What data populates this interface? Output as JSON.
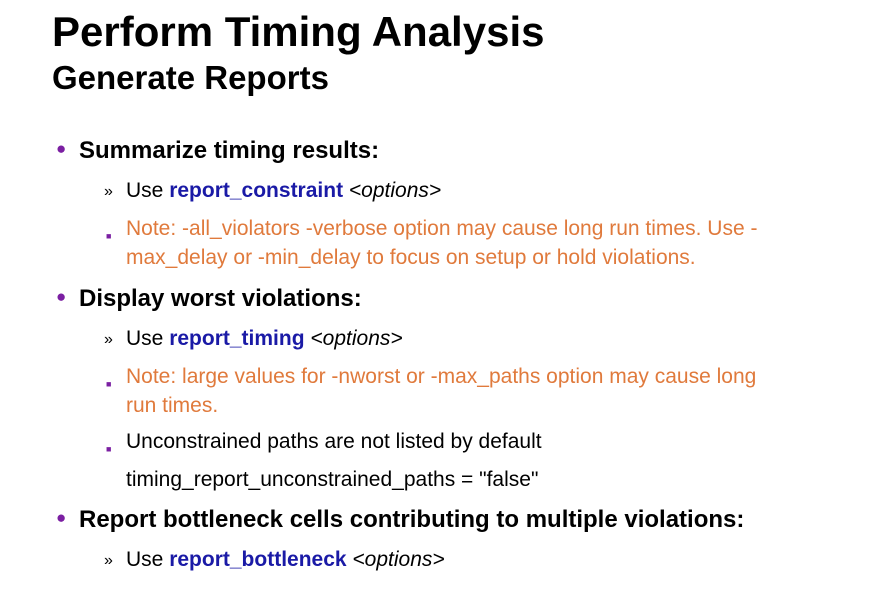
{
  "title": "Perform Timing Analysis",
  "subtitle": "Generate Reports",
  "bullets": [
    {
      "label": "Summarize timing results:",
      "use_prefix": "Use",
      "command": "report_constraint",
      "options": "<options>",
      "note_line1": "Note: -all_violators -verbose option may cause long run times. Use -",
      "note_line2": "max_delay or -min_delay to focus on setup or hold violations."
    },
    {
      "label": "Display worst violations:",
      "use_prefix": "Use",
      "command": "report_timing",
      "options": "<options>",
      "note_line1": "Note: large values for -nworst or -max_paths option may cause long",
      "note_line2": "run times.",
      "extra_line": "Unconstrained paths are not listed by default",
      "variable_line": "timing_report_unconstrained_paths = \"false\""
    },
    {
      "label": "Report bottleneck cells contributing to multiple violations:",
      "use_prefix": "Use",
      "command": "report_bottleneck",
      "options": "<options>"
    }
  ],
  "colors": {
    "bullet_dot": "#7b1fa2",
    "command": "#1a1aa6",
    "note": "#e07a3c"
  },
  "icons": {
    "bullet": "bullet-dot-icon",
    "sub_arrow": "double-chevron-icon",
    "sub_square": "square-bullet-icon"
  }
}
